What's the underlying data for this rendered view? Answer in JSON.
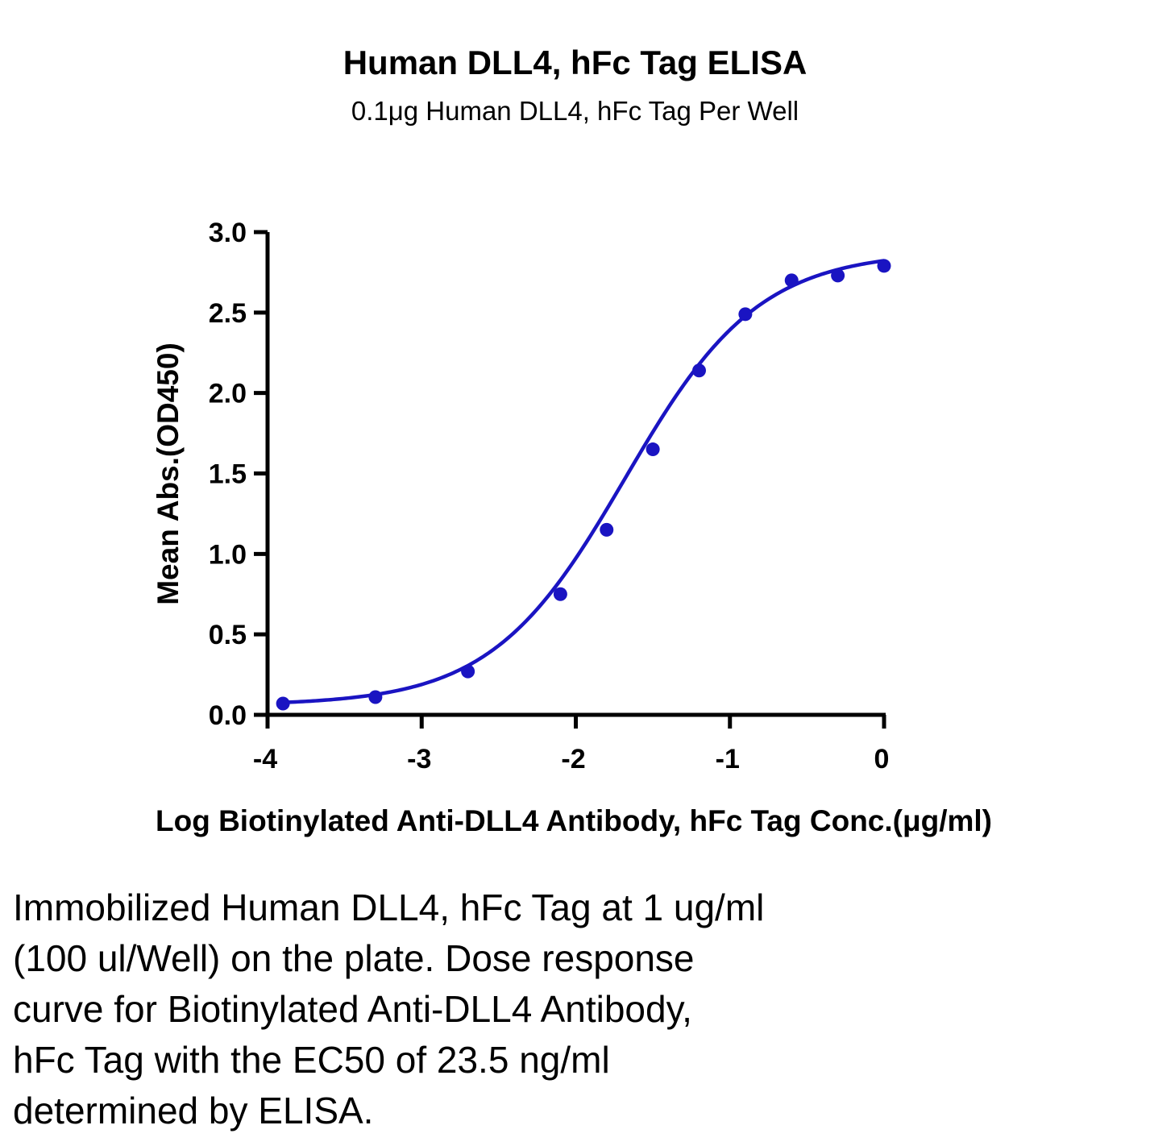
{
  "chart_data": {
    "type": "scatter",
    "title": "Human DLL4, hFc Tag ELISA",
    "subtitle": "0.1μg Human DLL4, hFc Tag Per Well",
    "xlabel": "Log Biotinylated Anti-DLL4 Antibody, hFc Tag Conc.(μg/ml)",
    "ylabel": "Mean Abs.(OD450)",
    "xlim": [
      -4,
      0
    ],
    "ylim": [
      0,
      3.0
    ],
    "x_ticks": [
      -4,
      -3,
      -2,
      -1,
      0
    ],
    "x_tick_labels": [
      "-4",
      "-3",
      "-2",
      "-1",
      "0"
    ],
    "y_ticks": [
      0,
      0.5,
      1.0,
      1.5,
      2.0,
      2.5,
      3.0
    ],
    "y_tick_labels": [
      "0.0",
      "0.5",
      "1.0",
      "1.5",
      "2.0",
      "2.5",
      "3.0"
    ],
    "grid": false,
    "legend": "none",
    "series": [
      {
        "x": [
          -3.9,
          -3.3,
          -2.7,
          -2.1,
          -1.8,
          -1.5,
          -1.2,
          -0.9,
          -0.6,
          -0.3,
          0.0
        ],
        "y": [
          0.07,
          0.11,
          0.27,
          0.75,
          1.15,
          1.65,
          2.14,
          2.49,
          2.7,
          2.73,
          2.79
        ],
        "color": "#1a14c2",
        "marker": "circle",
        "fit": "sigmoidal dose-response (4PL)"
      }
    ]
  },
  "caption": {
    "lines": [
      "Immobilized Human DLL4, hFc Tag at 1 ug/ml",
      "(100 ul/Well) on the plate. Dose response",
      "curve for Biotinylated Anti-DLL4 Antibody,",
      "hFc Tag with the EC50 of 23.5 ng/ml",
      "determined by ELISA."
    ]
  }
}
